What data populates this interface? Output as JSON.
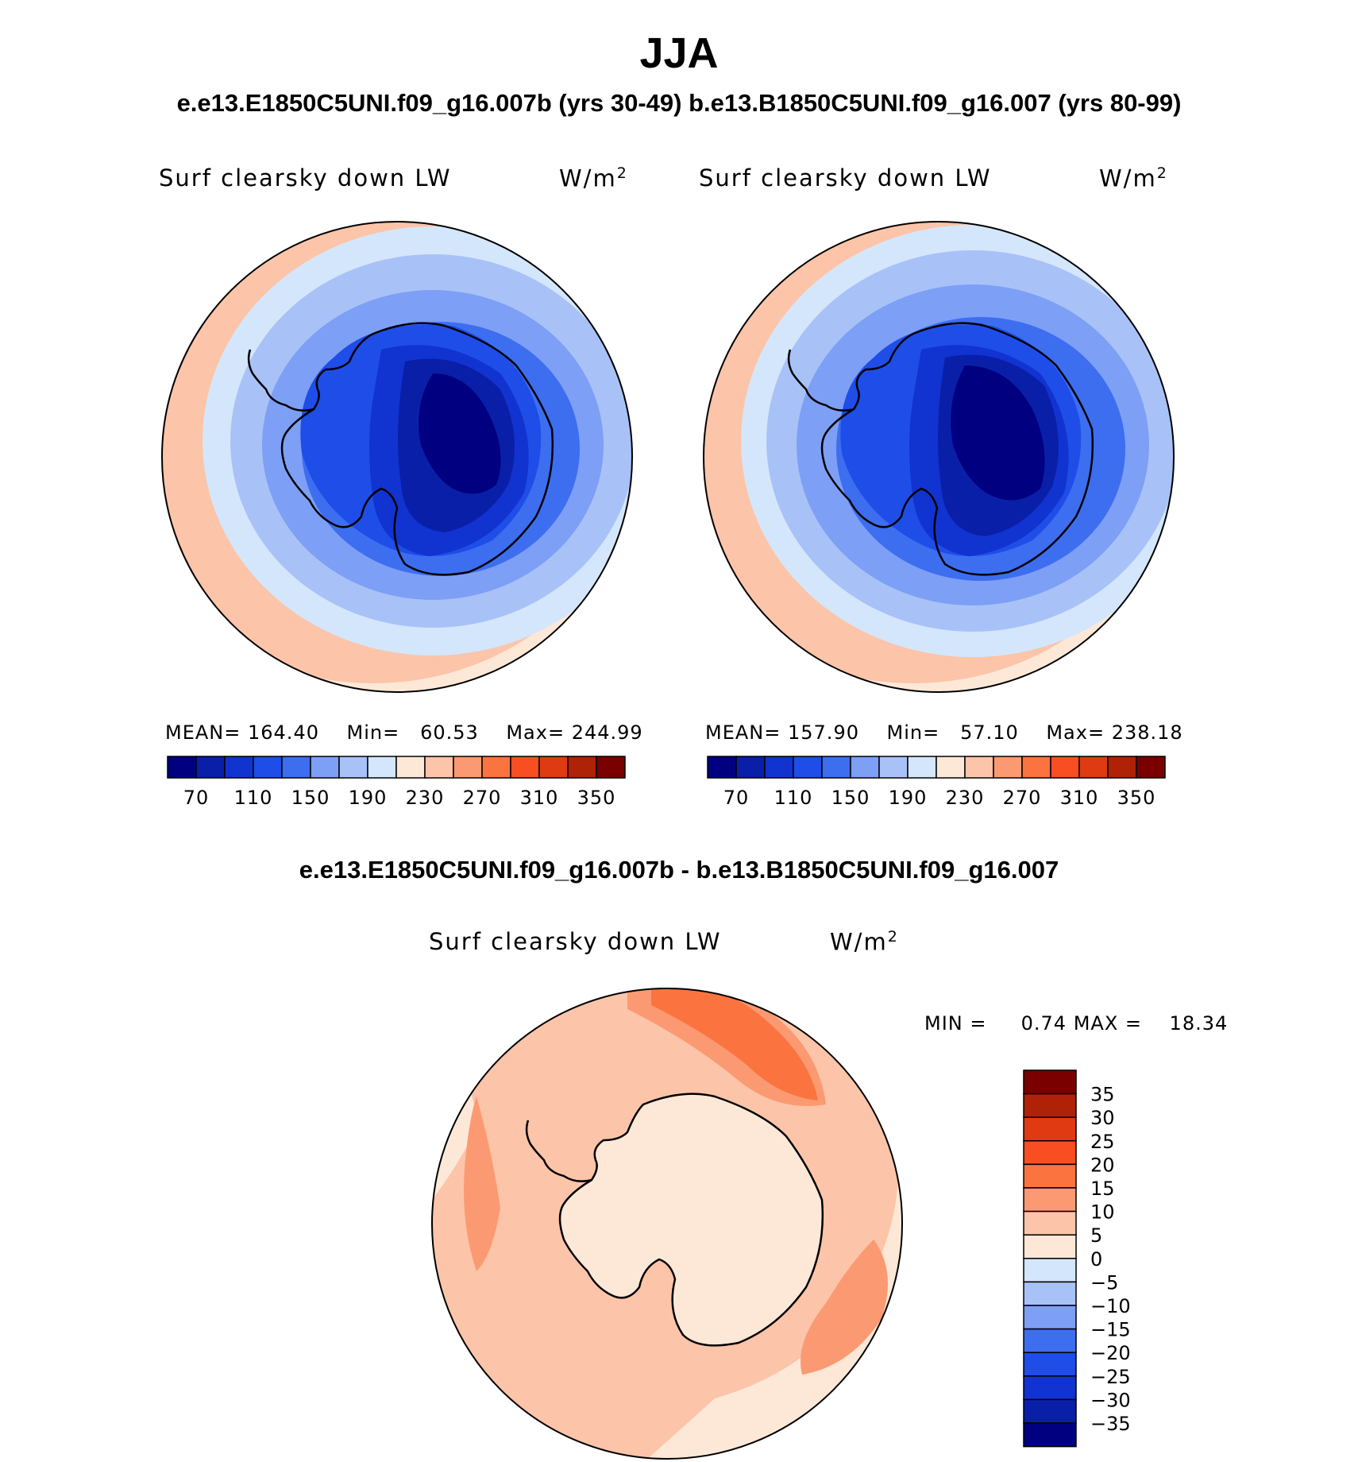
{
  "season": "JJA",
  "case_header": "e.e13.E1850C5UNI.f09_g16.007b (yrs 30-49)  b.e13.B1850C5UNI.f09_g16.007 (yrs 80-99)",
  "diff_header": "e.e13.E1850C5UNI.f09_g16.007b - b.e13.B1850C5UNI.f09_g16.007",
  "panels": [
    {
      "variable": "Surf clearsky down LW",
      "units_base": "W/m",
      "units_exp": "2",
      "stats": {
        "mean_label": "MEAN=",
        "mean": "164.40",
        "min_label": "Min=",
        "min": "60.53",
        "max_label": "Max=",
        "max": "244.99"
      }
    },
    {
      "variable": "Surf clearsky down LW",
      "units_base": "W/m",
      "units_exp": "2",
      "stats": {
        "mean_label": "MEAN=",
        "mean": "157.90",
        "min_label": "Min=",
        "min": "57.10",
        "max_label": "Max=",
        "max": "238.18"
      }
    },
    {
      "variable": "Surf clearsky down LW",
      "units_base": "W/m",
      "units_exp": "2",
      "stats": {
        "min_label": "MIN =",
        "min": "0.74",
        "max_label": "MAX =",
        "max": "18.34"
      }
    }
  ],
  "abs_colorbar": {
    "colors": [
      "#000080",
      "#0a1fa8",
      "#1133d0",
      "#1f4de8",
      "#3d6ef0",
      "#7d9ff5",
      "#a8c2f8",
      "#d4e6fb",
      "#fde8d8",
      "#fcc4a8",
      "#fb9a72",
      "#fb7440",
      "#f84e22",
      "#e03a12",
      "#b02208",
      "#7a0000"
    ],
    "labels": [
      "70",
      "110",
      "150",
      "190",
      "230",
      "270",
      "310",
      "350"
    ]
  },
  "diff_colorbar": {
    "colors": [
      "#000080",
      "#0a1fa8",
      "#1133d0",
      "#1f4de8",
      "#3d6ef0",
      "#7d9ff5",
      "#a8c2f8",
      "#d4e6fb",
      "#fde8d8",
      "#fcc4a8",
      "#fb9a72",
      "#fb7440",
      "#f84e22",
      "#e03a12",
      "#b02208",
      "#7a0000"
    ],
    "labels": [
      "35",
      "30",
      "25",
      "20",
      "15",
      "10",
      "5",
      "0",
      "−5",
      "−10",
      "−15",
      "−20",
      "−25",
      "−30",
      "−35"
    ]
  },
  "map_colors": {
    "ocean_far": "#fde8d8",
    "ocean_mid": "#fcc4a8",
    "ring_1": "#d4e6fb",
    "ring_2": "#a8c2f8",
    "ring_3": "#7d9ff5",
    "ring_4": "#3d6ef0",
    "ring_5": "#1f4de8",
    "ring_6": "#1133d0",
    "ring_7": "#0a1fa8",
    "core": "#000080",
    "diff_land": "#fde8d8",
    "diff_mid": "#fcc4a8",
    "diff_high": "#fb9a72",
    "diff_peak": "#fb7440"
  }
}
